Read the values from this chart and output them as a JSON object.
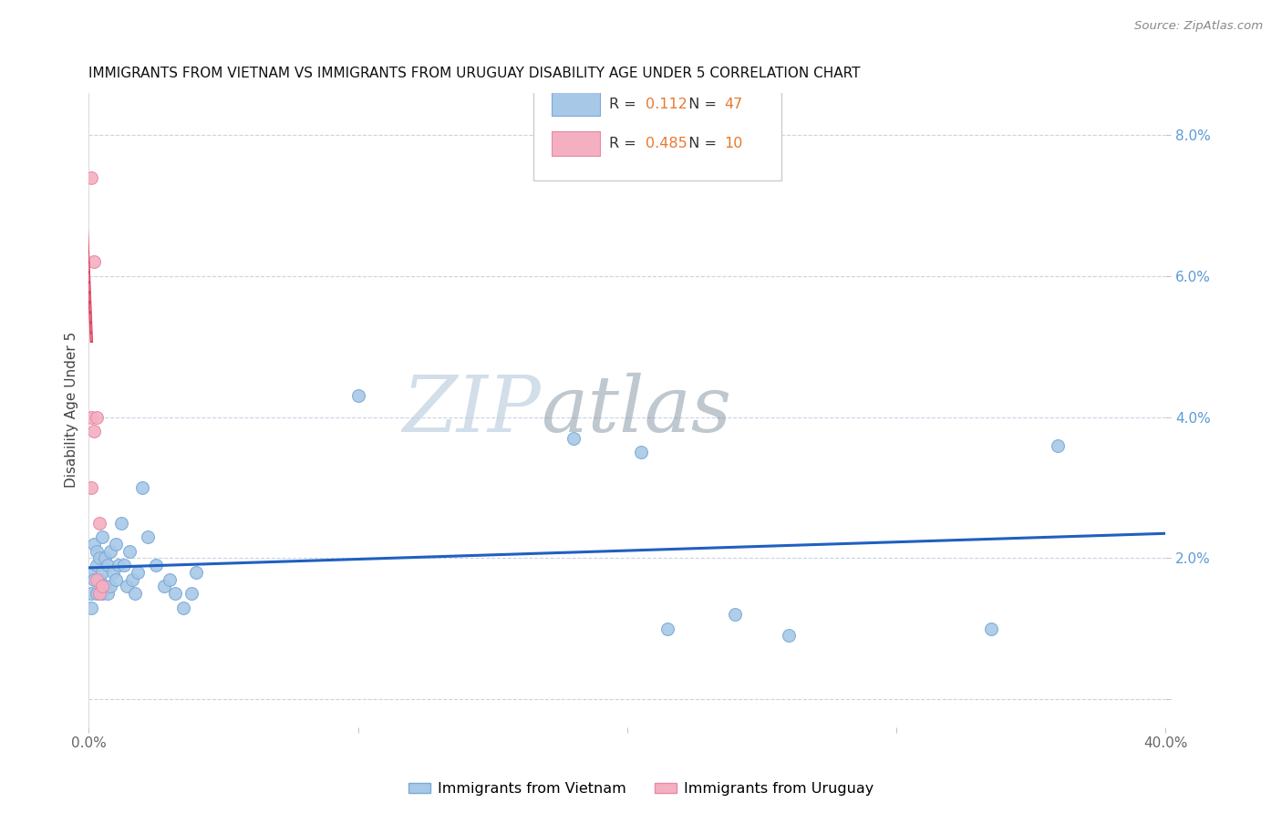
{
  "title": "IMMIGRANTS FROM VIETNAM VS IMMIGRANTS FROM URUGUAY DISABILITY AGE UNDER 5 CORRELATION CHART",
  "source": "Source: ZipAtlas.com",
  "ylabel": "Disability Age Under 5",
  "xlim": [
    0,
    0.4
  ],
  "ylim": [
    -0.004,
    0.086
  ],
  "yticks": [
    0.0,
    0.02,
    0.04,
    0.06,
    0.08
  ],
  "ytick_labels": [
    "",
    "2.0%",
    "4.0%",
    "6.0%",
    "8.0%"
  ],
  "xticks": [
    0.0,
    0.1,
    0.2,
    0.3,
    0.4
  ],
  "xtick_labels": [
    "0.0%",
    "",
    "",
    "",
    "40.0%"
  ],
  "vietnam_x": [
    0.001,
    0.001,
    0.001,
    0.002,
    0.002,
    0.003,
    0.003,
    0.003,
    0.004,
    0.004,
    0.005,
    0.005,
    0.005,
    0.006,
    0.006,
    0.007,
    0.007,
    0.008,
    0.008,
    0.009,
    0.01,
    0.01,
    0.011,
    0.012,
    0.013,
    0.014,
    0.015,
    0.016,
    0.017,
    0.018,
    0.02,
    0.022,
    0.025,
    0.028,
    0.03,
    0.032,
    0.035,
    0.038,
    0.04,
    0.1,
    0.18,
    0.205,
    0.215,
    0.24,
    0.26,
    0.335,
    0.36
  ],
  "vietnam_y": [
    0.018,
    0.015,
    0.013,
    0.022,
    0.017,
    0.021,
    0.019,
    0.015,
    0.02,
    0.017,
    0.023,
    0.018,
    0.015,
    0.02,
    0.016,
    0.019,
    0.015,
    0.021,
    0.016,
    0.018,
    0.022,
    0.017,
    0.019,
    0.025,
    0.019,
    0.016,
    0.021,
    0.017,
    0.015,
    0.018,
    0.03,
    0.023,
    0.019,
    0.016,
    0.017,
    0.015,
    0.013,
    0.015,
    0.018,
    0.043,
    0.037,
    0.035,
    0.01,
    0.012,
    0.009,
    0.01,
    0.036
  ],
  "uruguay_x": [
    0.001,
    0.001,
    0.001,
    0.002,
    0.002,
    0.003,
    0.003,
    0.004,
    0.004,
    0.005
  ],
  "uruguay_y": [
    0.074,
    0.04,
    0.03,
    0.062,
    0.038,
    0.04,
    0.017,
    0.025,
    0.015,
    0.016
  ],
  "vietnam_color": "#a8c8e8",
  "uruguay_color": "#f4b0c0",
  "vietnam_edge": "#7aaad4",
  "uruguay_edge": "#e888a8",
  "regression_blue_color": "#2060c0",
  "regression_pink_color": "#e04060",
  "regression_pink_dashed_color": "#e08098",
  "watermark_zip": "ZIP",
  "watermark_atlas": "atlas",
  "watermark_color_zip": "#c0d0e0",
  "watermark_color_atlas": "#8090a0",
  "background_color": "#ffffff",
  "title_fontsize": 11,
  "axis_label_fontsize": 11,
  "tick_fontsize": 11,
  "tick_color_x": "#666666",
  "tick_color_y": "#5b9bd5",
  "grid_color": "#c8d4e4",
  "marker_size": 100,
  "r_vietnam": "0.112",
  "n_vietnam": "47",
  "r_uruguay": "0.485",
  "n_uruguay": "10",
  "legend_value_color": "#e87830",
  "legend_n_color": "#e87830"
}
